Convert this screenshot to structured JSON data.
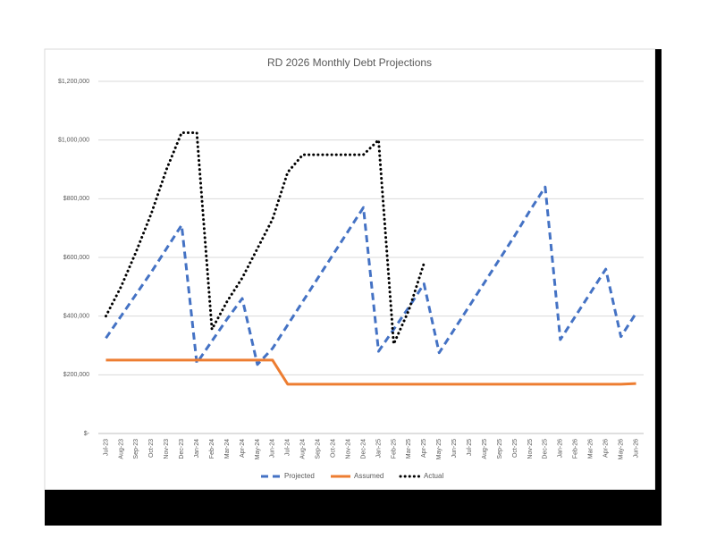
{
  "chart_data": {
    "type": "line",
    "title": "RD 2026 Monthly Debt Projections",
    "categories": [
      "Jul-23",
      "Aug-23",
      "Sep-23",
      "Oct-23",
      "Nov-23",
      "Dec-23",
      "Jan-24",
      "Feb-24",
      "Mar-24",
      "Apr-24",
      "May-24",
      "Jun-24",
      "Jul-24",
      "Aug-24",
      "Sep-24",
      "Oct-24",
      "Nov-24",
      "Dec-24",
      "Jan-25",
      "Feb-25",
      "Mar-25",
      "Apr-25",
      "May-25",
      "Jun-25",
      "Jul-25",
      "Aug-25",
      "Sep-25",
      "Oct-25",
      "Nov-25",
      "Dec-25",
      "Jan-26",
      "Feb-26",
      "Mar-26",
      "Apr-26",
      "May-26",
      "Jun-26"
    ],
    "series": [
      {
        "name": "Projected",
        "color": "#4472c4",
        "style": "dashed",
        "values": [
          325000,
          400000,
          475000,
          550000,
          630000,
          710000,
          240000,
          315000,
          390000,
          460000,
          235000,
          290000,
          370000,
          450000,
          530000,
          610000,
          690000,
          770000,
          280000,
          355000,
          430000,
          510000,
          275000,
          355000,
          435000,
          515000,
          595000,
          675000,
          760000,
          840000,
          320000,
          400000,
          480000,
          560000,
          330000,
          410000
        ]
      },
      {
        "name": "Assumed",
        "color": "#ed7d31",
        "style": "solid",
        "values": [
          250000,
          250000,
          250000,
          250000,
          250000,
          250000,
          250000,
          250000,
          250000,
          250000,
          250000,
          250000,
          168000,
          168000,
          168000,
          168000,
          168000,
          168000,
          168000,
          168000,
          168000,
          168000,
          168000,
          168000,
          168000,
          168000,
          168000,
          168000,
          168000,
          168000,
          168000,
          168000,
          168000,
          168000,
          168000,
          170000
        ]
      },
      {
        "name": "Actual",
        "color": "#000000",
        "style": "dotted",
        "values": [
          400000,
          500000,
          620000,
          750000,
          900000,
          1025000,
          1025000,
          355000,
          450000,
          530000,
          630000,
          730000,
          890000,
          950000,
          950000,
          950000,
          950000,
          950000,
          1000000,
          305000,
          420000,
          580000,
          null,
          null,
          null,
          null,
          null,
          null,
          null,
          null,
          null,
          null,
          null,
          null,
          null,
          null
        ]
      }
    ],
    "ylim": [
      0,
      1200000
    ],
    "yticks": [
      {
        "value": 0,
        "label": "$-"
      },
      {
        "value": 200000,
        "label": "$200,000"
      },
      {
        "value": 400000,
        "label": "$400,000"
      },
      {
        "value": 600000,
        "label": "$600,000"
      },
      {
        "value": 800000,
        "label": "$800,000"
      },
      {
        "value": 1000000,
        "label": "$1,000,000"
      },
      {
        "value": 1200000,
        "label": "$1,200,000"
      }
    ],
    "grid": true,
    "legend": "bottom"
  }
}
